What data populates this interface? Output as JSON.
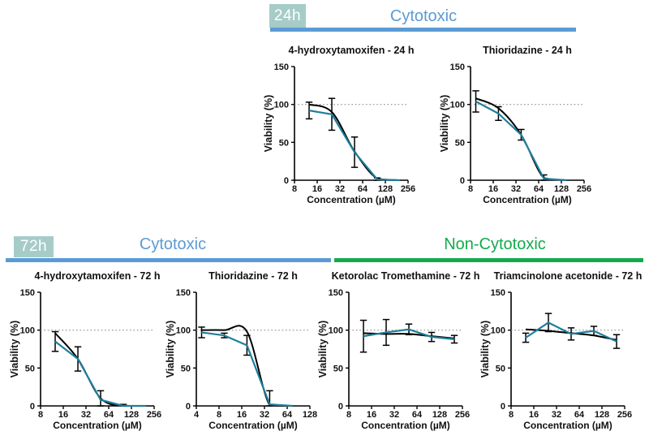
{
  "colors": {
    "badge_background": "#a6ccc8",
    "badge_text": "#ffffff",
    "cytotoxic_blue": "#5b9bd5",
    "non_cytotoxic_green": "#12ab4b",
    "curve_black": "#000000",
    "curve_teal": "#1e7f9c",
    "reference_line_gray": "#8f8f8f",
    "axis_black": "#000000"
  },
  "sections": [
    {
      "badge": "24h",
      "groups": [
        {
          "label": "Cytotoxic"
        }
      ]
    },
    {
      "badge": "72h",
      "groups": [
        {
          "label": "Cytotoxic"
        },
        {
          "label": "Non-Cytotoxic"
        }
      ]
    }
  ],
  "chart_data": [
    {
      "title": "4-hydroxytamoxifen - 24 h",
      "type": "line",
      "timepoint": "24h",
      "group": "Cytotoxic",
      "xlabel": "Concentration (µM)",
      "ylabel": "Viability (%)",
      "xscale": "log2",
      "x_ticks": [
        8,
        16,
        32,
        64,
        128,
        256
      ],
      "y_ticks": [
        0,
        50,
        100,
        150
      ],
      "ylim": [
        0,
        150
      ],
      "reference_line_y": 100,
      "x": [
        12.5,
        25,
        50,
        100,
        200
      ],
      "series": [
        {
          "name": "curve-fit",
          "color_key": "curve_black",
          "values": [
            100,
            90,
            38,
            2,
            0
          ]
        },
        {
          "name": "mean-line",
          "color_key": "curve_teal",
          "values": [
            92,
            87,
            37,
            1,
            0
          ]
        }
      ],
      "error_bars": {
        "centered_on": "mean-line",
        "values": [
          11,
          21,
          20,
          2,
          1
        ]
      }
    },
    {
      "title": "Thioridazine - 24 h",
      "type": "line",
      "timepoint": "24h",
      "group": "Cytotoxic",
      "xlabel": "Concentration (µM)",
      "ylabel": "Viability (%)",
      "xscale": "log2",
      "x_ticks": [
        8,
        16,
        32,
        64,
        128,
        256
      ],
      "y_ticks": [
        0,
        50,
        100,
        150
      ],
      "ylim": [
        0,
        150
      ],
      "reference_line_y": 100,
      "x": [
        9.4,
        18.75,
        37.5,
        75,
        150
      ],
      "series": [
        {
          "name": "curve-fit",
          "color_key": "curve_black",
          "values": [
            108,
            95,
            60,
            3,
            0
          ]
        },
        {
          "name": "mean-line",
          "color_key": "curve_teal",
          "values": [
            104,
            88,
            60,
            2,
            0
          ]
        }
      ],
      "error_bars": {
        "centered_on": "mean-line",
        "values": [
          14,
          9,
          7,
          5,
          1
        ]
      }
    },
    {
      "title": "4-hydroxytamoxifen - 72 h",
      "type": "line",
      "timepoint": "72h",
      "group": "Cytotoxic",
      "xlabel": "Concentration (µM)",
      "ylabel": "Viability (%)",
      "xscale": "log2",
      "x_ticks": [
        8,
        16,
        32,
        64,
        128,
        256
      ],
      "y_ticks": [
        0,
        50,
        100,
        150
      ],
      "ylim": [
        0,
        150
      ],
      "reference_line_y": 100,
      "x": [
        12.5,
        25,
        50,
        100,
        200
      ],
      "series": [
        {
          "name": "curve-fit",
          "color_key": "curve_black",
          "values": [
            96,
            62,
            10,
            0,
            0
          ]
        },
        {
          "name": "mean-line",
          "color_key": "curve_teal",
          "values": [
            85,
            62,
            8,
            0,
            0
          ]
        }
      ],
      "error_bars": {
        "centered_on": "mean-line",
        "values": [
          13,
          16,
          12,
          2,
          1
        ]
      }
    },
    {
      "title": "Thioridazine - 72 h",
      "type": "line",
      "timepoint": "72h",
      "group": "Cytotoxic",
      "xlabel": "Concentration (µM)",
      "ylabel": "Viability (%)",
      "xscale": "log2",
      "x_ticks": [
        4,
        8,
        16,
        32,
        64,
        128
      ],
      "y_ticks": [
        0,
        50,
        100,
        150
      ],
      "ylim": [
        0,
        150
      ],
      "reference_line_y": 100,
      "x": [
        4.7,
        9.4,
        18.75,
        37.5,
        75
      ],
      "series": [
        {
          "name": "curve-fit",
          "color_key": "curve_black",
          "values": [
            100,
            100,
            98,
            1,
            0
          ]
        },
        {
          "name": "mean-line",
          "color_key": "curve_teal",
          "values": [
            97,
            93,
            80,
            2,
            0
          ]
        }
      ],
      "error_bars": {
        "centered_on": "mean-line",
        "values": [
          7,
          3,
          13,
          18,
          1
        ]
      }
    },
    {
      "title": "Ketorolac Tromethamine - 72 h",
      "type": "line",
      "timepoint": "72h",
      "group": "Non-Cytotoxic",
      "xlabel": "Concentration (µM)",
      "ylabel": "Viability (%)",
      "xscale": "log2",
      "x_ticks": [
        8,
        16,
        32,
        64,
        128,
        256
      ],
      "y_ticks": [
        0,
        50,
        100,
        150
      ],
      "ylim": [
        0,
        150
      ],
      "reference_line_y": 100,
      "x": [
        12.5,
        25,
        50,
        100,
        200
      ],
      "series": [
        {
          "name": "curve-fit",
          "color_key": "curve_black",
          "values": [
            96,
            95,
            95,
            92,
            89
          ]
        },
        {
          "name": "mean-line",
          "color_key": "curve_teal",
          "values": [
            92,
            97,
            101,
            91,
            88
          ]
        }
      ],
      "error_bars": {
        "centered_on": "mean-line",
        "values": [
          21,
          17,
          7,
          6,
          5
        ]
      }
    },
    {
      "title": "Triamcinolone acetonide - 72 h",
      "type": "line",
      "timepoint": "72h",
      "group": "Non-Cytotoxic",
      "xlabel": "Concentration (µM)",
      "ylabel": "Viability (%)",
      "xscale": "log2",
      "x_ticks": [
        8,
        16,
        32,
        64,
        128,
        256
      ],
      "y_ticks": [
        0,
        50,
        100,
        150
      ],
      "ylim": [
        0,
        150
      ],
      "reference_line_y": 100,
      "x": [
        12.5,
        25,
        50,
        100,
        200
      ],
      "series": [
        {
          "name": "curve-fit",
          "color_key": "curve_black",
          "values": [
            101,
            99,
            96,
            93,
            87
          ]
        },
        {
          "name": "mean-line",
          "color_key": "curve_teal",
          "values": [
            90,
            110,
            95,
            99,
            85
          ]
        }
      ],
      "error_bars": {
        "centered_on": "mean-line",
        "values": [
          6,
          12,
          8,
          6,
          9
        ]
      }
    }
  ]
}
